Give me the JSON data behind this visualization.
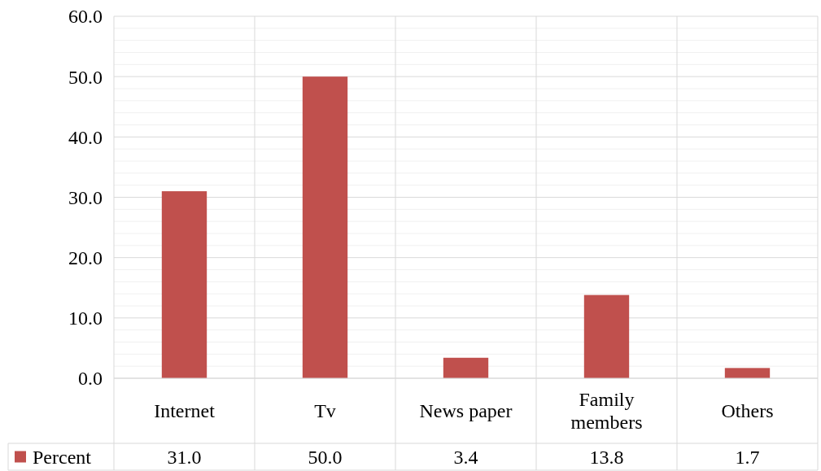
{
  "chart_data": {
    "type": "bar",
    "categories": [
      "Internet",
      "Tv",
      "News paper",
      "Family members",
      "Others"
    ],
    "series": [
      {
        "name": "Percent",
        "color": "#c0504d",
        "values": [
          31.0,
          50.0,
          3.4,
          13.8,
          1.7
        ],
        "value_labels": [
          "31.0",
          "50.0",
          "3.4",
          "13.8",
          "1.7"
        ]
      }
    ],
    "ylim": [
      0,
      60
    ],
    "yticks": [
      {
        "value": 0,
        "label": "0.0"
      },
      {
        "value": 2,
        "label": null
      },
      {
        "value": 4,
        "label": null
      },
      {
        "value": 6,
        "label": null
      },
      {
        "value": 8,
        "label": null
      },
      {
        "value": 10,
        "label": "10.0"
      },
      {
        "value": 12,
        "label": null
      },
      {
        "value": 14,
        "label": null
      },
      {
        "value": 16,
        "label": null
      },
      {
        "value": 18,
        "label": null
      },
      {
        "value": 20,
        "label": "20.0"
      },
      {
        "value": 22,
        "label": null
      },
      {
        "value": 24,
        "label": null
      },
      {
        "value": 26,
        "label": null
      },
      {
        "value": 28,
        "label": null
      },
      {
        "value": 30,
        "label": "30.0"
      },
      {
        "value": 32,
        "label": null
      },
      {
        "value": 34,
        "label": null
      },
      {
        "value": 36,
        "label": null
      },
      {
        "value": 38,
        "label": null
      },
      {
        "value": 40,
        "label": "40.0"
      },
      {
        "value": 42,
        "label": null
      },
      {
        "value": 44,
        "label": null
      },
      {
        "value": 46,
        "label": null
      },
      {
        "value": 48,
        "label": null
      },
      {
        "value": 50,
        "label": "50.0"
      },
      {
        "value": 52,
        "label": null
      },
      {
        "value": 54,
        "label": null
      },
      {
        "value": 56,
        "label": null
      },
      {
        "value": 58,
        "label": null
      },
      {
        "value": 60,
        "label": "60.0"
      }
    ],
    "grid": true,
    "legend": "bottom left"
  }
}
